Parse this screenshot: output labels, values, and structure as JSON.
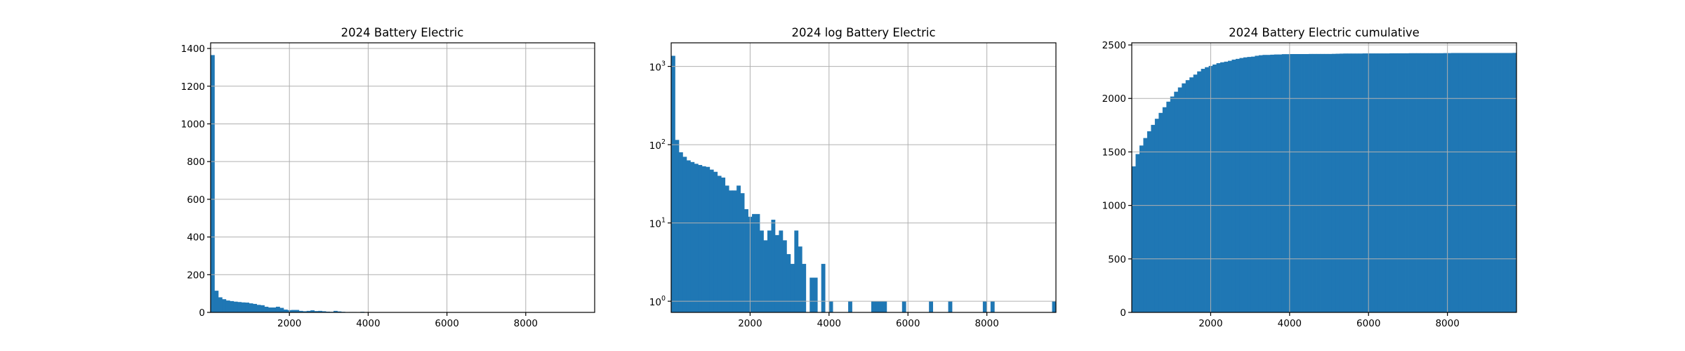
{
  "chart_data": [
    {
      "type": "bar",
      "title": "2024 Battery Electric",
      "xlim": [
        0,
        9750
      ],
      "ylim": [
        0,
        1430
      ],
      "bin_width": 97.5,
      "x_ticks": [
        2000,
        4000,
        6000,
        8000
      ],
      "x_tick_labels": [
        "2000",
        "4000",
        "6000",
        "8000"
      ],
      "y_ticks": [
        0,
        200,
        400,
        600,
        800,
        1000,
        1200,
        1400
      ],
      "y_tick_labels": [
        "0",
        "200",
        "400",
        "600",
        "800",
        "1000",
        "1200",
        "1400"
      ],
      "grid": true,
      "values": [
        1365,
        115,
        80,
        70,
        63,
        60,
        57,
        55,
        53,
        52,
        48,
        45,
        40,
        38,
        30,
        26,
        26,
        30,
        24,
        15,
        12,
        13,
        13,
        8,
        6,
        8,
        11,
        7,
        8,
        6,
        4,
        3,
        8,
        5,
        3,
        0,
        2,
        2,
        0,
        3,
        0,
        1,
        0,
        0,
        0,
        0,
        1,
        0,
        0,
        0,
        0,
        0,
        1,
        1,
        1,
        1,
        0,
        0,
        0,
        0,
        1,
        0,
        0,
        0,
        0,
        0,
        0,
        1,
        0,
        0,
        0,
        0,
        1,
        0,
        0,
        0,
        0,
        0,
        0,
        0,
        0,
        1,
        0,
        1,
        0,
        0,
        0,
        0,
        0,
        0,
        0,
        0,
        0,
        0,
        0,
        0,
        0,
        0,
        0,
        1
      ]
    },
    {
      "type": "bar",
      "title": "2024 log Battery Electric",
      "yscale": "log",
      "xlim": [
        0,
        9750
      ],
      "ylim": [
        0.72,
        2000
      ],
      "bin_width": 97.5,
      "x_ticks": [
        2000,
        4000,
        6000,
        8000
      ],
      "x_tick_labels": [
        "2000",
        "4000",
        "6000",
        "8000"
      ],
      "y_ticks": [
        1,
        10,
        100,
        1000
      ],
      "y_tick_labels": [
        {
          "base": "10",
          "exp": "0"
        },
        {
          "base": "10",
          "exp": "1"
        },
        {
          "base": "10",
          "exp": "2"
        },
        {
          "base": "10",
          "exp": "3"
        }
      ],
      "grid": true,
      "values": [
        1365,
        115,
        80,
        70,
        63,
        60,
        57,
        55,
        53,
        52,
        48,
        45,
        40,
        38,
        30,
        26,
        26,
        30,
        24,
        15,
        12,
        13,
        13,
        8,
        6,
        8,
        11,
        7,
        8,
        6,
        4,
        3,
        8,
        5,
        3,
        0,
        2,
        2,
        0,
        3,
        0,
        1,
        0,
        0,
        0,
        0,
        1,
        0,
        0,
        0,
        0,
        0,
        1,
        1,
        1,
        1,
        0,
        0,
        0,
        0,
        1,
        0,
        0,
        0,
        0,
        0,
        0,
        1,
        0,
        0,
        0,
        0,
        1,
        0,
        0,
        0,
        0,
        0,
        0,
        0,
        0,
        1,
        0,
        1,
        0,
        0,
        0,
        0,
        0,
        0,
        0,
        0,
        0,
        0,
        0,
        0,
        0,
        0,
        0,
        1
      ]
    },
    {
      "type": "bar",
      "title": "2024 Battery Electric cumulative",
      "cumulative": true,
      "xlim": [
        0,
        9750
      ],
      "ylim": [
        0,
        2520
      ],
      "bin_width": 97.5,
      "x_ticks": [
        2000,
        4000,
        6000,
        8000
      ],
      "x_tick_labels": [
        "2000",
        "4000",
        "6000",
        "8000"
      ],
      "y_ticks": [
        0,
        500,
        1000,
        1500,
        2000,
        2500
      ],
      "y_tick_labels": [
        "0",
        "500",
        "1000",
        "1500",
        "2000",
        "2500"
      ],
      "grid": true,
      "values": [
        1365,
        1480,
        1560,
        1630,
        1693,
        1753,
        1810,
        1865,
        1918,
        1970,
        2018,
        2063,
        2103,
        2141,
        2171,
        2197,
        2223,
        2253,
        2277,
        2292,
        2304,
        2317,
        2330,
        2338,
        2344,
        2352,
        2363,
        2370,
        2378,
        2384,
        2388,
        2391,
        2399,
        2404,
        2407,
        2407,
        2409,
        2411,
        2411,
        2414,
        2414,
        2415,
        2415,
        2415,
        2415,
        2415,
        2416,
        2416,
        2416,
        2416,
        2416,
        2416,
        2417,
        2418,
        2419,
        2420,
        2420,
        2420,
        2420,
        2420,
        2421,
        2421,
        2421,
        2421,
        2421,
        2421,
        2421,
        2422,
        2422,
        2422,
        2422,
        2422,
        2423,
        2423,
        2423,
        2423,
        2423,
        2423,
        2423,
        2423,
        2423,
        2424,
        2424,
        2425,
        2425,
        2425,
        2425,
        2425,
        2425,
        2425,
        2425,
        2425,
        2425,
        2425,
        2425,
        2425,
        2425,
        2425,
        2425,
        2426
      ]
    }
  ]
}
